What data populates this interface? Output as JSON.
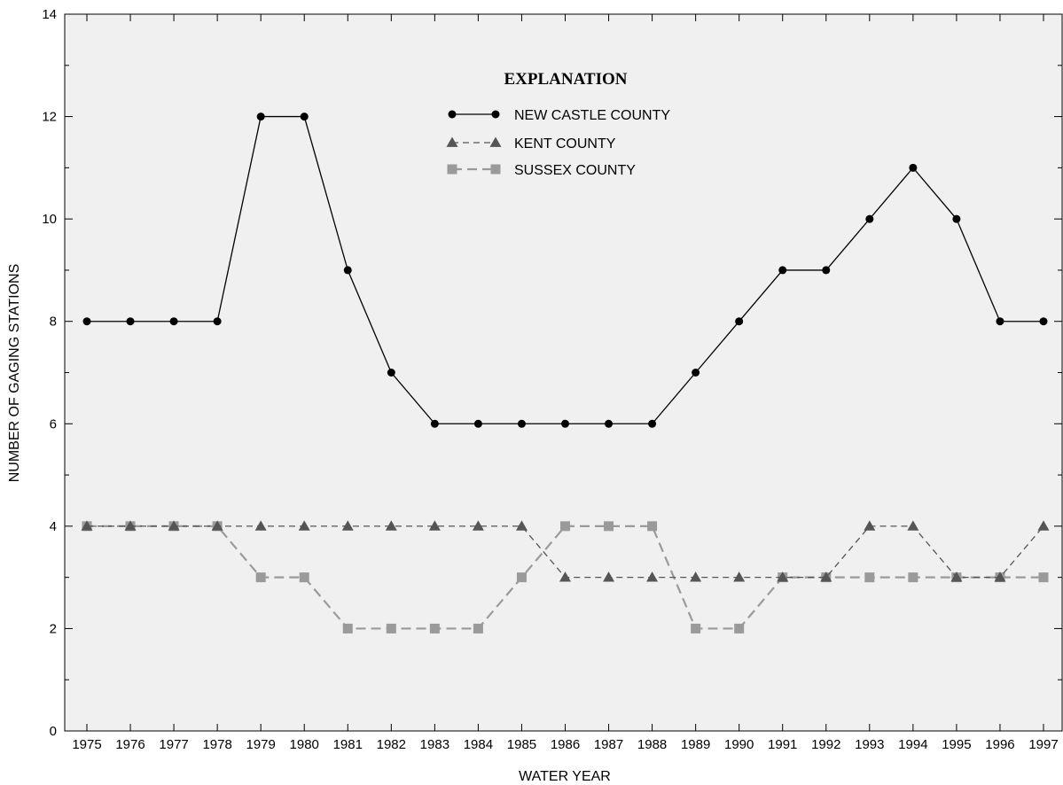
{
  "chart_data": {
    "type": "line",
    "xlabel": "WATER YEAR",
    "ylabel": "NUMBER OF GAGING STATIONS",
    "x": [
      1975,
      1976,
      1977,
      1978,
      1979,
      1980,
      1981,
      1982,
      1983,
      1984,
      1985,
      1986,
      1987,
      1988,
      1989,
      1990,
      1991,
      1992,
      1993,
      1994,
      1995,
      1996,
      1997
    ],
    "ylim": [
      0,
      14
    ],
    "yticks": [
      0,
      2,
      4,
      6,
      8,
      10,
      12,
      14
    ],
    "grid": false,
    "legend": {
      "title": "EXPLANATION",
      "placement": "top-center"
    },
    "series": [
      {
        "name": "NEW CASTLE COUNTY",
        "marker": "circle",
        "line": "solid",
        "color": "#000000",
        "values": [
          8,
          8,
          8,
          8,
          12,
          12,
          9,
          7,
          6,
          6,
          6,
          6,
          6,
          6,
          7,
          8,
          9,
          9,
          10,
          11,
          10,
          8,
          8
        ]
      },
      {
        "name": "KENT COUNTY",
        "marker": "triangle",
        "line": "dashed",
        "color": "#555555",
        "values": [
          4,
          4,
          4,
          4,
          4,
          4,
          4,
          4,
          4,
          4,
          4,
          3,
          3,
          3,
          3,
          3,
          3,
          3,
          4,
          4,
          3,
          3,
          4
        ]
      },
      {
        "name": "SUSSEX COUNTY",
        "marker": "square",
        "line": "dashed",
        "color": "#9a9a9a",
        "values": [
          4,
          4,
          4,
          4,
          3,
          3,
          2,
          2,
          2,
          2,
          3,
          4,
          4,
          4,
          2,
          2,
          3,
          3,
          3,
          3,
          3,
          3,
          3
        ]
      }
    ]
  },
  "colors": {
    "plot_background": "#f0f0f0",
    "axis": "#000000"
  }
}
